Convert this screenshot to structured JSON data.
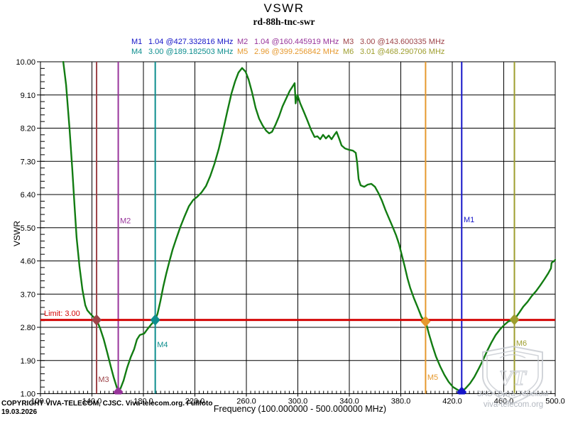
{
  "title": "VSWR",
  "subtitle": "rd-88h-tnc-swr",
  "freq_unit": "MHz",
  "chart_data": {
    "type": "line",
    "title": "VSWR",
    "xlabel": "Frequency (100.000000 - 500.000000 MHz)",
    "ylabel": "VSWR",
    "xlim": [
      100,
      500
    ],
    "ylim": [
      1.0,
      10.0
    ],
    "grid": true,
    "legend_position": "top",
    "x_ticks": [
      100,
      140,
      180,
      220,
      260,
      300,
      340,
      380,
      420,
      460,
      500
    ],
    "x_tick_labels": [
      "100.0",
      "140.0",
      "180.0",
      "220.0",
      "260.0",
      "300.0",
      "340.0",
      "380.0",
      "420.0",
      "460.0",
      "500.0"
    ],
    "y_ticks": [
      1.0,
      1.9,
      2.8,
      3.7,
      4.6,
      5.5,
      6.4,
      7.3,
      8.2,
      9.1,
      10.0
    ],
    "y_tick_labels": [
      "1.00",
      "1.90",
      "2.80",
      "3.70",
      "4.60",
      "5.50",
      "6.40",
      "7.30",
      "8.20",
      "9.10",
      "10.00"
    ],
    "x_minor_step": 3.3333,
    "y_minor_step": 0.18,
    "limit_line": {
      "label": "Limit: 3.00",
      "value": 3.0,
      "color": "#d40808"
    },
    "markers": [
      {
        "id": "M1",
        "vswr_label": "1.04",
        "freq_label": "427.332816",
        "freq": 427.332816,
        "vswr": 1.04,
        "color": "#1515c8",
        "label_f": 428.8,
        "label_v": 5.65
      },
      {
        "id": "M2",
        "vswr_label": "1.04",
        "freq_label": "160.445919",
        "freq": 160.445919,
        "vswr": 1.04,
        "color": "#98359b",
        "label_f": 161.8,
        "label_v": 5.62
      },
      {
        "id": "M3",
        "vswr_label": "3.00",
        "freq_label": "143.600335",
        "freq": 143.600335,
        "vswr": 3.0,
        "color": "#9d4348",
        "label_f": 144.9,
        "label_v": 1.32
      },
      {
        "id": "M4",
        "vswr_label": "3.00",
        "freq_label": "189.182503",
        "freq": 189.182503,
        "vswr": 3.0,
        "color": "#0d8e8e",
        "label_f": 190.6,
        "label_v": 2.26
      },
      {
        "id": "M5",
        "vswr_label": "2.96",
        "freq_label": "399.256842",
        "freq": 399.256842,
        "vswr": 2.96,
        "color": "#e6992e",
        "label_f": 400.6,
        "label_v": 1.38
      },
      {
        "id": "M6",
        "vswr_label": "3.01",
        "freq_label": "468.290706",
        "freq": 468.290706,
        "vswr": 3.01,
        "color": "#9e9e2e",
        "label_f": 469.6,
        "label_v": 2.3
      }
    ],
    "series": [
      {
        "name": "VSWR",
        "color": "#127c12",
        "points": [
          [
            117.7,
            10.0
          ],
          [
            119.9,
            9.37
          ],
          [
            122.6,
            8.17
          ],
          [
            124.8,
            7.06
          ],
          [
            126.5,
            6.09
          ],
          [
            128.1,
            5.23
          ],
          [
            130.3,
            4.46
          ],
          [
            132.6,
            3.82
          ],
          [
            134.8,
            3.4
          ],
          [
            136.4,
            3.26
          ],
          [
            139.2,
            3.15
          ],
          [
            143.6,
            3.0
          ],
          [
            146.3,
            2.78
          ],
          [
            149.1,
            2.48
          ],
          [
            151.9,
            2.11
          ],
          [
            154.6,
            1.74
          ],
          [
            156.8,
            1.45
          ],
          [
            159.0,
            1.21
          ],
          [
            160.4,
            1.05
          ],
          [
            162.3,
            1.15
          ],
          [
            164.6,
            1.36
          ],
          [
            167.3,
            1.7
          ],
          [
            170.1,
            1.99
          ],
          [
            172.8,
            2.21
          ],
          [
            175.0,
            2.47
          ],
          [
            177.2,
            2.59
          ],
          [
            180.6,
            2.63
          ],
          [
            183.3,
            2.76
          ],
          [
            186.1,
            2.88
          ],
          [
            189.2,
            3.0
          ],
          [
            191.0,
            3.17
          ],
          [
            193.2,
            3.51
          ],
          [
            195.4,
            3.9
          ],
          [
            197.7,
            4.25
          ],
          [
            199.9,
            4.55
          ],
          [
            202.6,
            4.9
          ],
          [
            205.4,
            5.19
          ],
          [
            208.7,
            5.52
          ],
          [
            212.0,
            5.81
          ],
          [
            215.3,
            6.08
          ],
          [
            218.6,
            6.25
          ],
          [
            221.9,
            6.34
          ],
          [
            225.2,
            6.46
          ],
          [
            228.6,
            6.63
          ],
          [
            231.9,
            6.9
          ],
          [
            235.2,
            7.23
          ],
          [
            238.5,
            7.63
          ],
          [
            241.8,
            8.12
          ],
          [
            245.1,
            8.64
          ],
          [
            248.4,
            9.14
          ],
          [
            251.2,
            9.46
          ],
          [
            253.9,
            9.71
          ],
          [
            256.7,
            9.83
          ],
          [
            259.4,
            9.73
          ],
          [
            261.7,
            9.52
          ],
          [
            264.4,
            9.17
          ],
          [
            267.2,
            8.75
          ],
          [
            269.9,
            8.46
          ],
          [
            272.7,
            8.27
          ],
          [
            275.4,
            8.13
          ],
          [
            277.7,
            8.06
          ],
          [
            279.9,
            8.1
          ],
          [
            282.6,
            8.29
          ],
          [
            285.4,
            8.52
          ],
          [
            288.1,
            8.79
          ],
          [
            290.9,
            9.0
          ],
          [
            293.7,
            9.21
          ],
          [
            295.9,
            9.33
          ],
          [
            297.5,
            9.42
          ],
          [
            298.3,
            8.87
          ],
          [
            299.7,
            9.1
          ],
          [
            301.9,
            8.87
          ],
          [
            304.7,
            8.64
          ],
          [
            307.4,
            8.41
          ],
          [
            310.2,
            8.16
          ],
          [
            313.0,
            7.96
          ],
          [
            315.2,
            7.98
          ],
          [
            317.4,
            7.9
          ],
          [
            319.6,
            8.02
          ],
          [
            321.8,
            7.92
          ],
          [
            324.0,
            8.0
          ],
          [
            326.2,
            7.9
          ],
          [
            328.4,
            8.02
          ],
          [
            330.1,
            8.1
          ],
          [
            332.3,
            7.9
          ],
          [
            334.0,
            7.73
          ],
          [
            336.7,
            7.65
          ],
          [
            340.0,
            7.61
          ],
          [
            342.8,
            7.59
          ],
          [
            345.0,
            7.53
          ],
          [
            346.1,
            7.25
          ],
          [
            347.2,
            6.82
          ],
          [
            348.8,
            6.65
          ],
          [
            351.6,
            6.61
          ],
          [
            354.3,
            6.67
          ],
          [
            357.1,
            6.69
          ],
          [
            359.9,
            6.61
          ],
          [
            362.6,
            6.44
          ],
          [
            365.4,
            6.23
          ],
          [
            368.1,
            5.98
          ],
          [
            370.9,
            5.75
          ],
          [
            373.7,
            5.52
          ],
          [
            376.4,
            5.29
          ],
          [
            378.6,
            5.06
          ],
          [
            380.8,
            4.75
          ],
          [
            383.0,
            4.46
          ],
          [
            385.2,
            4.13
          ],
          [
            387.4,
            3.86
          ],
          [
            390.2,
            3.59
          ],
          [
            392.9,
            3.36
          ],
          [
            396.2,
            3.07
          ],
          [
            399.3,
            2.96
          ],
          [
            401.8,
            2.63
          ],
          [
            404.6,
            2.3
          ],
          [
            407.3,
            2.01
          ],
          [
            410.6,
            1.74
          ],
          [
            413.9,
            1.51
          ],
          [
            417.2,
            1.32
          ],
          [
            420.6,
            1.18
          ],
          [
            423.9,
            1.11
          ],
          [
            427.3,
            1.05
          ],
          [
            430.5,
            1.15
          ],
          [
            433.8,
            1.28
          ],
          [
            437.1,
            1.45
          ],
          [
            440.4,
            1.67
          ],
          [
            443.7,
            1.9
          ],
          [
            447.0,
            2.15
          ],
          [
            450.3,
            2.38
          ],
          [
            453.7,
            2.59
          ],
          [
            457.0,
            2.74
          ],
          [
            460.3,
            2.86
          ],
          [
            463.6,
            2.96
          ],
          [
            468.3,
            3.01
          ],
          [
            471.9,
            3.19
          ],
          [
            475.2,
            3.36
          ],
          [
            478.5,
            3.49
          ],
          [
            481.8,
            3.65
          ],
          [
            485.1,
            3.78
          ],
          [
            488.4,
            3.94
          ],
          [
            491.7,
            4.11
          ],
          [
            494.5,
            4.26
          ],
          [
            496.7,
            4.4
          ],
          [
            497.2,
            4.55
          ],
          [
            498.9,
            4.59
          ],
          [
            500.0,
            4.63
          ]
        ]
      }
    ]
  },
  "footer": {
    "copyright": "COPYRIGHT VIVA-TELECOM, CJSC. Viva-telecom.org. Fullfoto",
    "date": "19.03.2026"
  },
  "watermark": {
    "company": "ЗАО \"Вита-Телеком\"",
    "site": "viva-telecom.org",
    "monogram": "VT"
  }
}
